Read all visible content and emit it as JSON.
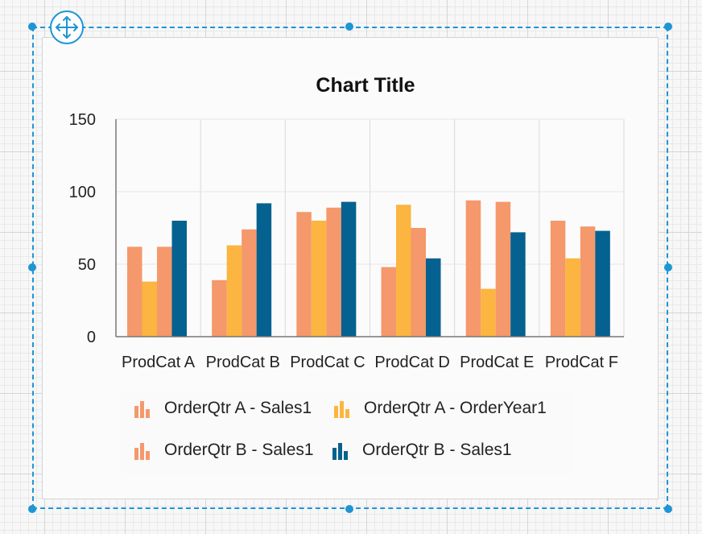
{
  "chart_data": {
    "type": "bar",
    "title": "Chart Title",
    "categories": [
      "ProdCat A",
      "ProdCat B",
      "ProdCat C",
      "ProdCat D",
      "ProdCat E",
      "ProdCat F"
    ],
    "series": [
      {
        "name": "OrderQtr A - Sales1",
        "color": "#f5986b",
        "values": [
          62,
          39,
          86,
          48,
          94,
          80
        ]
      },
      {
        "name": "OrderQtr A - OrderYear1",
        "color": "#fbb540",
        "values": [
          38,
          63,
          80,
          91,
          33,
          54
        ]
      },
      {
        "name": "OrderQtr B - Sales1",
        "color": "#f5986b",
        "values": [
          62,
          74,
          89,
          75,
          93,
          76
        ]
      },
      {
        "name": "OrderQtr B - Sales1",
        "color": "#05618f",
        "values": [
          80,
          92,
          93,
          54,
          72,
          73
        ]
      }
    ],
    "y_ticks": [
      "0",
      "50",
      "100",
      "150"
    ],
    "ylim": [
      0,
      150
    ],
    "grid": true,
    "legend_position": "bottom"
  },
  "designer": {
    "move_handle_icon": "move-arrows-icon",
    "selection_color": "#1e95d4"
  }
}
